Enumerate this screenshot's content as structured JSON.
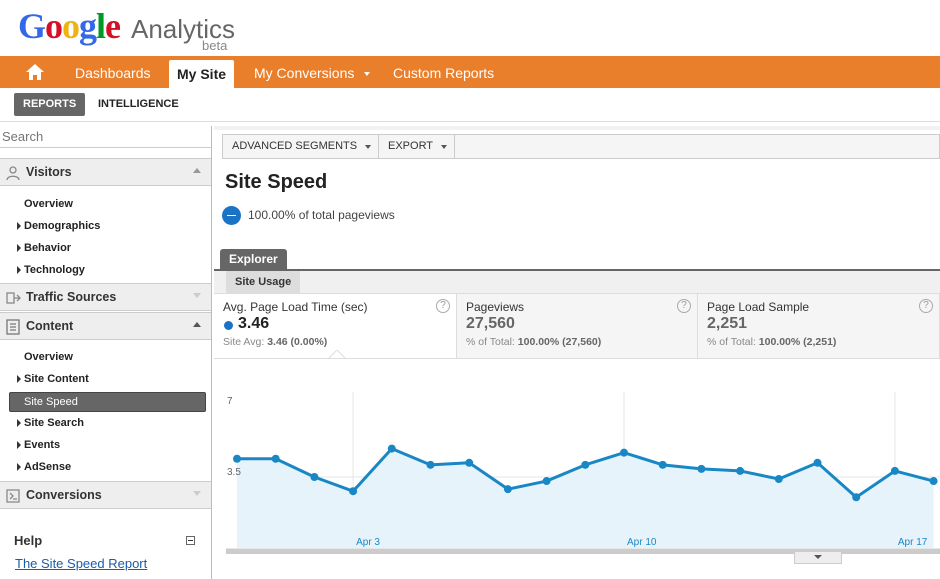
{
  "header": {
    "logo_google": "Google",
    "logo_analytics": "Analytics",
    "logo_beta": "beta"
  },
  "nav": {
    "dashboards": "Dashboards",
    "my_site": "My Site",
    "my_conversions": "My Conversions",
    "custom_reports": "Custom Reports",
    "accent": "#e97e2b"
  },
  "subnav": {
    "reports": "REPORTS",
    "intelligence": "INTELLIGENCE"
  },
  "sidebar": {
    "search_placeholder": "Search",
    "visitors": {
      "label": "Visitors",
      "items": [
        "Overview",
        "Demographics",
        "Behavior",
        "Technology"
      ]
    },
    "traffic_sources": {
      "label": "Traffic Sources"
    },
    "content": {
      "label": "Content",
      "items": [
        "Overview",
        "Site Content",
        "Site Speed",
        "Site Search",
        "Events",
        "AdSense"
      ],
      "selected": "Site Speed"
    },
    "conversions": {
      "label": "Conversions"
    },
    "help": {
      "title": "Help",
      "link": "The Site Speed Report"
    }
  },
  "toolbar": {
    "advanced_segments": "ADVANCED SEGMENTS",
    "export": "EXPORT"
  },
  "page": {
    "title": "Site Speed",
    "segment_text": "100.00% of total pageviews"
  },
  "tabs": {
    "explorer": "Explorer",
    "site_usage": "Site Usage"
  },
  "metrics": [
    {
      "name": "Avg. Page Load Time (sec)",
      "value": "3.46",
      "sub_prefix": "Site Avg:",
      "sub_value": "3.46 (0.00%)"
    },
    {
      "name": "Pageviews",
      "value": "27,560",
      "sub_prefix": "% of Total:",
      "sub_value": "100.00% (27,560)"
    },
    {
      "name": "Page Load Sample",
      "value": "2,251",
      "sub_prefix": "% of Total:",
      "sub_value": "100.00% (2,251)"
    }
  ],
  "chart_data": {
    "type": "area",
    "yticks": [
      "7",
      "3.5"
    ],
    "ylim": [
      0,
      7
    ],
    "xticks": [
      {
        "label": "Apr 3",
        "index": 3
      },
      {
        "label": "Apr 10",
        "index": 10
      },
      {
        "label": "Apr 17",
        "index": 17
      }
    ],
    "values": [
      4.4,
      4.4,
      3.5,
      2.8,
      4.9,
      4.1,
      4.2,
      2.9,
      3.3,
      4.1,
      4.7,
      4.1,
      3.9,
      3.8,
      3.4,
      4.2,
      2.5,
      3.8,
      3.3
    ],
    "color": "#1a87c5"
  }
}
